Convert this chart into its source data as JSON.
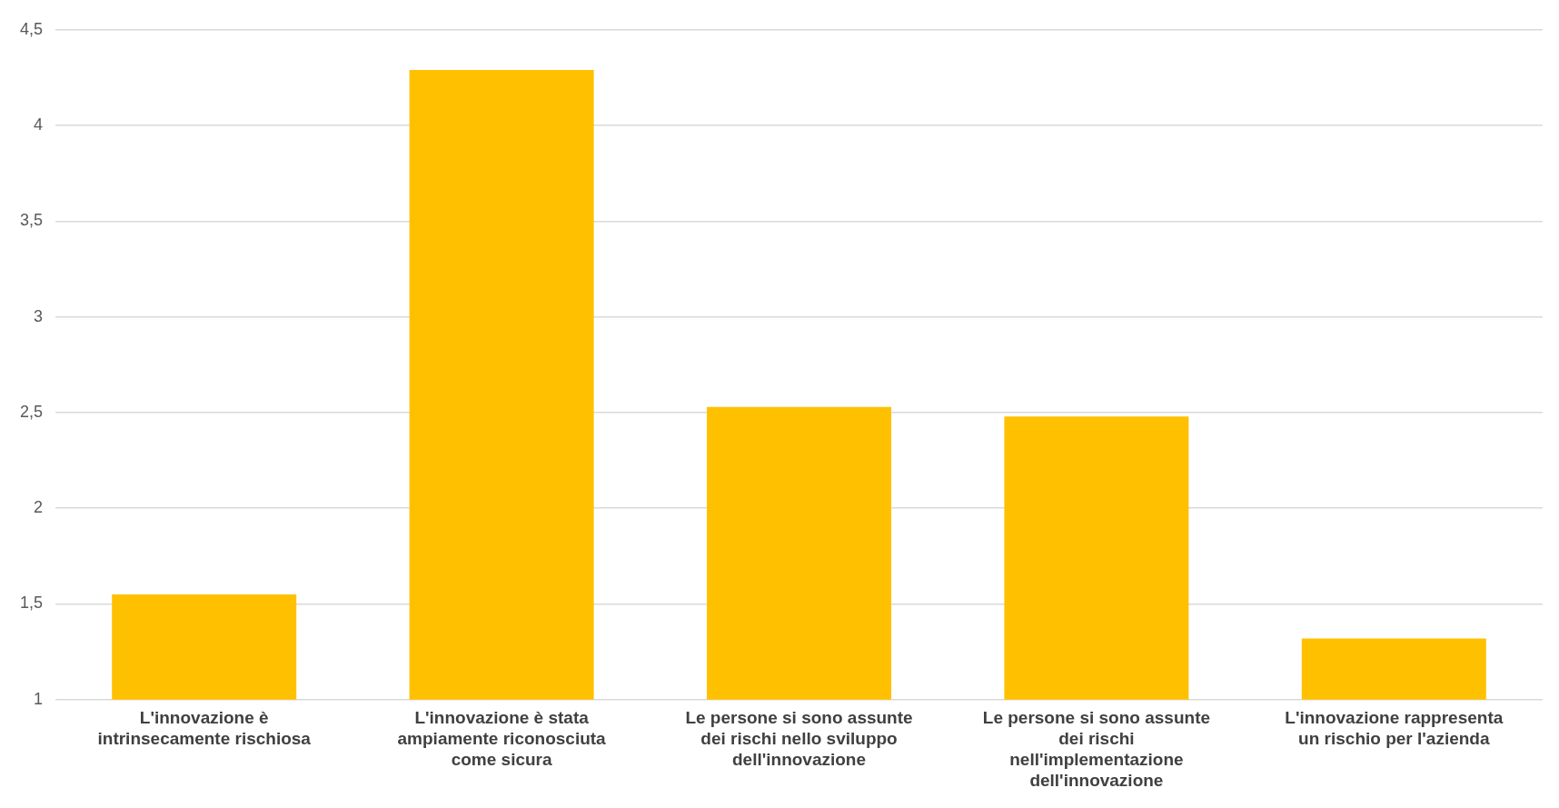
{
  "chart_data": {
    "type": "bar",
    "categories": [
      "L'innovazione è intrinsecamente rischiosa",
      "L'innovazione è stata ampiamente riconosciuta come sicura",
      "Le persone si sono assunte dei rischi nello sviluppo dell'innovazione",
      "Le persone si sono assunte dei rischi nell'implementazione dell'innovazione",
      "L'innovazione rappresenta un rischio per l'azienda"
    ],
    "values": [
      1.55,
      4.29,
      2.53,
      2.48,
      1.32
    ],
    "color": "#ffc000",
    "ylim": [
      1,
      4.5
    ],
    "yticks": [
      {
        "value": 1,
        "label": "1"
      },
      {
        "value": 1.5,
        "label": "1,5"
      },
      {
        "value": 2,
        "label": "2"
      },
      {
        "value": 2.5,
        "label": "2,5"
      },
      {
        "value": 3,
        "label": "3"
      },
      {
        "value": 3.5,
        "label": "3,5"
      },
      {
        "value": 4,
        "label": "4"
      },
      {
        "value": 4.5,
        "label": "4,5"
      }
    ],
    "grid": "y",
    "legend": false
  }
}
